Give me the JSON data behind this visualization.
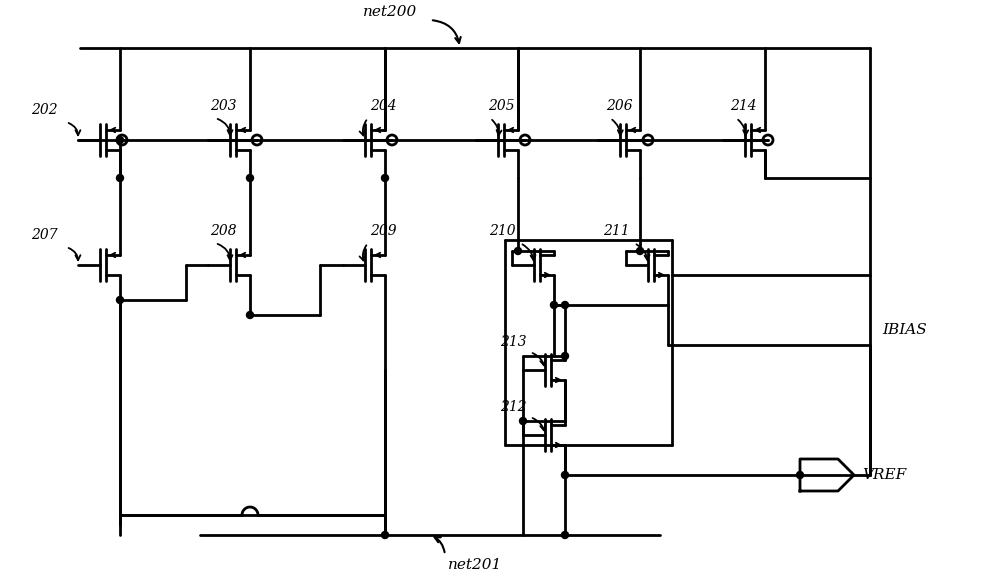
{
  "figsize": [
    10.0,
    5.88
  ],
  "dpi": 100,
  "bg_color": "#ffffff",
  "line_color": "#000000",
  "lw": 2.0,
  "labels": {
    "net200": "net200",
    "net201": "net201",
    "ibias": "IBIAS",
    "vref": "VREF",
    "202": "202",
    "203": "203",
    "204": "204",
    "205": "205",
    "206": "206",
    "207": "207",
    "208": "208",
    "209": "209",
    "210": "210",
    "211": "211",
    "212": "212",
    "213": "213",
    "214": "214"
  }
}
